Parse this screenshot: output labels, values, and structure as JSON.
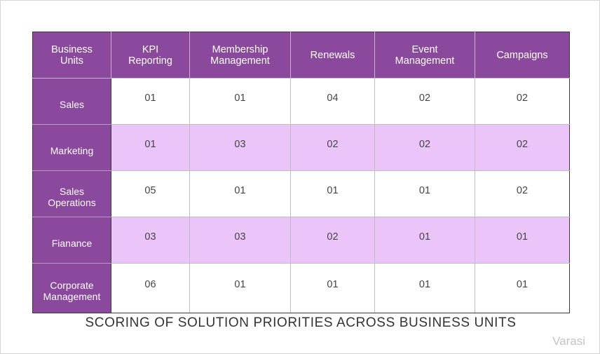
{
  "chart_data": {
    "type": "table",
    "title": "SCORING OF SOLUTION PRIORITIES ACROSS BUSINESS UNITS",
    "header_row_label": [
      "Business",
      "Units"
    ],
    "columns": [
      [
        "KPI",
        "Reporting"
      ],
      [
        "Membership",
        "Management"
      ],
      [
        "Renewals"
      ],
      [
        "Event",
        "Management"
      ],
      [
        "Campaigns"
      ]
    ],
    "rows": [
      {
        "label": [
          "Sales"
        ],
        "values": [
          "01",
          "01",
          "04",
          "02",
          "02"
        ]
      },
      {
        "label": [
          "Marketing"
        ],
        "values": [
          "01",
          "03",
          "02",
          "02",
          "02"
        ]
      },
      {
        "label": [
          "Sales",
          "Operations"
        ],
        "values": [
          "05",
          "01",
          "01",
          "01",
          "02"
        ]
      },
      {
        "label": [
          "Fianance"
        ],
        "values": [
          "03",
          "03",
          "02",
          "01",
          "01"
        ]
      },
      {
        "label": [
          "Corporate",
          "Management"
        ],
        "values": [
          "06",
          "01",
          "01",
          "01",
          "01"
        ]
      }
    ],
    "colors": {
      "header": "#8a499d",
      "shaded_row": "#ebc5f9",
      "plain_row": "#ffffff"
    }
  },
  "brand": "Varasi"
}
